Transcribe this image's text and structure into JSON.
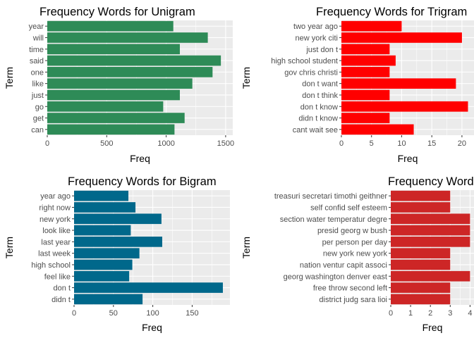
{
  "chart_data": [
    {
      "type": "bar",
      "orientation": "horizontal",
      "title": "Frequency Words for Unigram",
      "xlabel": "Freq",
      "ylabel": "Term",
      "color": "#2e8b57",
      "xlim": [
        0,
        1560
      ],
      "xticks": [
        0,
        500,
        1000,
        1500
      ],
      "categories": [
        "year",
        "will",
        "time",
        "said",
        "one",
        "like",
        "just",
        "go",
        "get",
        "can"
      ],
      "values": [
        1060,
        1350,
        1115,
        1460,
        1390,
        1220,
        1115,
        975,
        1155,
        1070
      ]
    },
    {
      "type": "bar",
      "orientation": "horizontal",
      "title": "Frequency Words for Trigram",
      "xlabel": "Freq",
      "ylabel": "Term",
      "color": "#ff0000",
      "xlim": [
        0,
        22
      ],
      "xticks": [
        0,
        5,
        10,
        15,
        20
      ],
      "categories": [
        "two year ago",
        "new york citi",
        "just don t",
        "high school student",
        "gov chris christi",
        "don t want",
        "don t think",
        "don t know",
        "didn t know",
        "cant wait see"
      ],
      "values": [
        10,
        20,
        8,
        9,
        8,
        19,
        8,
        21,
        8,
        12
      ]
    },
    {
      "type": "bar",
      "orientation": "horizontal",
      "title": "Frequency Words for Bigram",
      "xlabel": "Freq",
      "ylabel": "Term",
      "color": "#00688b",
      "xlim": [
        0,
        198
      ],
      "xticks": [
        0,
        50,
        100,
        150
      ],
      "categories": [
        "year ago",
        "right now",
        "new york",
        "look like",
        "last year",
        "last week",
        "high school",
        "feel like",
        "don t",
        "didn t"
      ],
      "values": [
        69,
        78,
        111,
        72,
        112,
        83,
        74,
        70,
        189,
        87
      ]
    },
    {
      "type": "bar",
      "orientation": "horizontal",
      "title": "Frequency Words for Quadgram",
      "xlabel": "Freq",
      "ylabel": "Term",
      "color": "#cd2626",
      "xlim": [
        0,
        4.2
      ],
      "xticks": [
        0,
        1,
        2,
        3,
        4
      ],
      "categories": [
        "treasuri secretari timothi geithner",
        "self confid self esteem",
        "section water temperatur degre",
        "presid georg w bush",
        "per person per day",
        "new york new york",
        "nation ventur capit associ",
        "georg washington denver east",
        "free throw second left",
        "district judg sara lioi"
      ],
      "values": [
        3,
        3,
        4,
        4,
        4,
        3,
        3,
        4,
        3,
        3
      ]
    }
  ]
}
